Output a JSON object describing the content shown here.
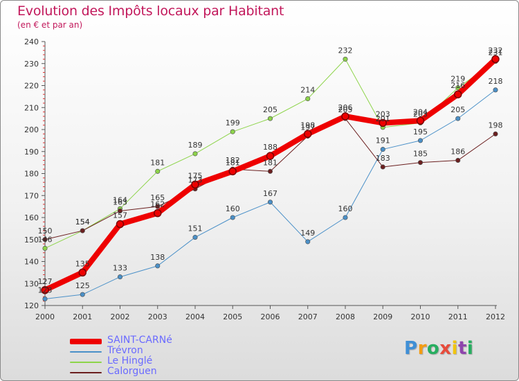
{
  "header": {
    "title": "Evolution des Impôts locaux par Habitant",
    "subtitle": "(en € et par an)"
  },
  "logo": {
    "letters": [
      "P",
      "r",
      "o",
      "x",
      "i",
      "t",
      "i"
    ],
    "colors": [
      "#3f8fd6",
      "#f39c12",
      "#27ae60",
      "#e74c3c",
      "#f1c40f",
      "#8e44ad",
      "#27ae60"
    ]
  },
  "chart_data": {
    "type": "line",
    "title": "Evolution des Impôts locaux par Habitant",
    "subtitle": "(en € et par an)",
    "xlabel": "",
    "ylabel": "",
    "categories": [
      "2000",
      "2001",
      "2002",
      "2003",
      "2004",
      "2005",
      "2006",
      "2007",
      "2008",
      "2009",
      "2010",
      "2011",
      "2012"
    ],
    "ylim": [
      120,
      240
    ],
    "yticks": [
      120,
      130,
      140,
      150,
      160,
      170,
      180,
      190,
      200,
      210,
      220,
      230,
      240
    ],
    "grid": false,
    "legend_position": "bottom-left",
    "series": [
      {
        "name": "Trévron",
        "color": "#4a90c8",
        "width": 1,
        "values": [
          123,
          125,
          133,
          138,
          151,
          160,
          167,
          149,
          160,
          191,
          195,
          205,
          218
        ],
        "labels": [
          "123",
          "125",
          "133",
          "138",
          "151",
          "160",
          "167",
          "149",
          "160",
          "191",
          "195",
          "205",
          "218"
        ]
      },
      {
        "name": "Le Hinglé",
        "color": "#8dd44a",
        "width": 1,
        "values": [
          146,
          154,
          164,
          181,
          189,
          199,
          205,
          214,
          232,
          201,
          203,
          219,
          231
        ],
        "labels": [
          "146",
          "154",
          "164",
          "181",
          "189",
          "199",
          "205",
          "214",
          "232",
          "201",
          "203",
          "219",
          "231"
        ]
      },
      {
        "name": "Calorguen",
        "color": "#6b1f1f",
        "width": 1,
        "values": [
          150,
          154,
          163,
          165,
          173,
          182,
          181,
          197,
          205,
          183,
          185,
          186,
          198
        ],
        "labels": [
          "150",
          "154",
          "163",
          "165",
          "173",
          "182",
          "181",
          "197",
          "205",
          "183",
          "185",
          "186",
          "198"
        ]
      },
      {
        "name": "SAINT-CARNé",
        "color": "#ee0000",
        "width": 8,
        "values": [
          127,
          135,
          157,
          162,
          175,
          181,
          188,
          198,
          206,
          203,
          204,
          216,
          232
        ],
        "labels": [
          "127",
          "135",
          "157",
          "162",
          "175",
          "181",
          "188",
          "198",
          "206",
          "203",
          "204",
          "216",
          "232"
        ]
      }
    ],
    "legend_order": [
      "SAINT-CARNé",
      "Trévron",
      "Le Hinglé",
      "Calorguen"
    ]
  }
}
